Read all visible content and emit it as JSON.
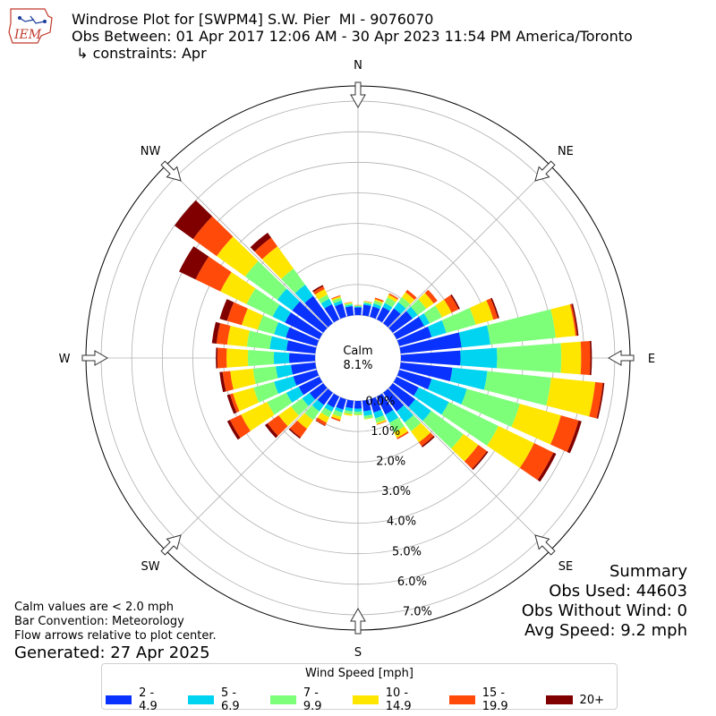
{
  "header": {
    "title_line1": "Windrose Plot for [SWPM4] S.W. Pier  MI - 9076070",
    "title_line2": "Obs Between: 01 Apr 2017 12:06 AM - 30 Apr 2023 11:54 PM America/Toronto",
    "title_line3": " ↳ constraints: Apr",
    "logo_text": "IEM"
  },
  "summary": {
    "heading": "Summary",
    "obs_used": "Obs Used: 44603",
    "obs_without_wind": "Obs Without Wind: 0",
    "avg_speed": "Avg Speed: 9.2 mph"
  },
  "notes": {
    "calm_note": "Calm values are < 2.0 mph",
    "bar_convention": "Bar Convention: Meteorology",
    "flow_arrows": "Flow arrows relative to plot center.",
    "generated": "Generated: 27 Apr 2025"
  },
  "legend": {
    "title": "Wind Speed [mph]",
    "items": [
      {
        "label": "2 - 4.9",
        "color": "#0a32ff"
      },
      {
        "label": "5 - 6.9",
        "color": "#00d4f0"
      },
      {
        "label": "7 - 9.9",
        "color": "#7dff7a"
      },
      {
        "label": "10 - 14.9",
        "color": "#ffe600"
      },
      {
        "label": "15 - 19.9",
        "color": "#ff4a0a"
      },
      {
        "label": "20+",
        "color": "#800000"
      }
    ]
  },
  "chart_data": {
    "type": "windrose",
    "calm_label": "Calm",
    "calm_value": "8.1%",
    "radial_labels": [
      "0.0%",
      "1.0%",
      "2.0%",
      "3.0%",
      "4.0%",
      "5.0%",
      "6.0%",
      "7.0%"
    ],
    "radial_max": 7.5,
    "compass_labels": [
      {
        "label": "N",
        "dir": 0
      },
      {
        "label": "NE",
        "dir": 45
      },
      {
        "label": "E",
        "dir": 90
      },
      {
        "label": "SE",
        "dir": 135
      },
      {
        "label": "S",
        "dir": 180
      },
      {
        "label": "SW",
        "dir": 225
      },
      {
        "label": "W",
        "dir": 270
      },
      {
        "label": "NW",
        "dir": 315
      }
    ],
    "bins": [
      "2 - 4.9",
      "5 - 6.9",
      "7 - 9.9",
      "10 - 14.9",
      "15 - 19.9",
      "20+"
    ],
    "sectors": [
      {
        "dir": 0,
        "values": [
          0.25,
          0.03,
          0.03,
          0.01,
          0.01,
          0.0
        ]
      },
      {
        "dir": 10,
        "values": [
          0.35,
          0.05,
          0.04,
          0.02,
          0.01,
          0.0
        ]
      },
      {
        "dir": 20,
        "values": [
          0.35,
          0.1,
          0.1,
          0.05,
          0.05,
          0.0
        ]
      },
      {
        "dir": 30,
        "values": [
          0.45,
          0.15,
          0.2,
          0.1,
          0.05,
          0.0
        ]
      },
      {
        "dir": 40,
        "values": [
          0.6,
          0.25,
          0.2,
          0.2,
          0.1,
          0.0
        ]
      },
      {
        "dir": 50,
        "values": [
          0.8,
          0.2,
          0.35,
          0.3,
          0.15,
          0.0
        ]
      },
      {
        "dir": 60,
        "values": [
          1.0,
          0.2,
          0.45,
          0.35,
          0.25,
          0.05
        ]
      },
      {
        "dir": 70,
        "values": [
          1.1,
          0.5,
          1.0,
          0.6,
          0.15,
          0.05
        ]
      },
      {
        "dir": 80,
        "values": [
          2.0,
          0.95,
          2.15,
          0.65,
          0.05,
          0.05
        ]
      },
      {
        "dir": 90,
        "values": [
          1.95,
          1.2,
          2.1,
          0.65,
          0.3,
          0.05
        ]
      },
      {
        "dir": 100,
        "values": [
          1.7,
          1.15,
          2.1,
          1.45,
          0.25,
          0.05
        ]
      },
      {
        "dir": 110,
        "values": [
          1.1,
          1.2,
          1.8,
          1.4,
          0.6,
          0.1
        ]
      },
      {
        "dir": 120,
        "values": [
          0.8,
          1.1,
          1.8,
          1.3,
          0.7,
          0.1
        ]
      },
      {
        "dir": 130,
        "values": [
          0.9,
          0.65,
          1.3,
          0.6,
          0.35,
          0.05
        ]
      },
      {
        "dir": 140,
        "values": [
          0.75,
          0.45,
          0.35,
          0.45,
          0.15,
          0.05
        ]
      },
      {
        "dir": 150,
        "values": [
          0.65,
          0.3,
          0.35,
          0.2,
          0.05,
          0.0
        ]
      },
      {
        "dir": 160,
        "values": [
          0.45,
          0.2,
          0.15,
          0.05,
          0.02,
          0.0
        ]
      },
      {
        "dir": 170,
        "values": [
          0.35,
          0.15,
          0.1,
          0.02,
          0.0,
          0.0
        ]
      },
      {
        "dir": 180,
        "values": [
          0.25,
          0.1,
          0.1,
          0.02,
          0.0,
          0.0
        ]
      },
      {
        "dir": 190,
        "values": [
          0.25,
          0.1,
          0.1,
          0.05,
          0.0,
          0.0
        ]
      },
      {
        "dir": 200,
        "values": [
          0.35,
          0.1,
          0.15,
          0.1,
          0.05,
          0.0
        ]
      },
      {
        "dir": 210,
        "values": [
          0.4,
          0.15,
          0.2,
          0.2,
          0.1,
          0.02
        ]
      },
      {
        "dir": 220,
        "values": [
          0.5,
          0.25,
          0.35,
          0.35,
          0.35,
          0.05
        ]
      },
      {
        "dir": 230,
        "values": [
          0.55,
          0.3,
          0.45,
          0.5,
          0.45,
          0.1
        ]
      },
      {
        "dir": 240,
        "values": [
          0.75,
          0.45,
          0.7,
          0.95,
          0.4,
          0.1
        ]
      },
      {
        "dir": 250,
        "values": [
          0.8,
          0.65,
          0.7,
          0.7,
          0.1,
          0.1
        ]
      },
      {
        "dir": 260,
        "values": [
          0.8,
          0.5,
          0.75,
          0.75,
          0.25,
          0.1
        ]
      },
      {
        "dir": 270,
        "values": [
          0.85,
          0.5,
          0.85,
          0.7,
          0.3,
          0.05
        ]
      },
      {
        "dir": 280,
        "values": [
          0.95,
          0.55,
          0.75,
          0.65,
          0.35,
          0.15
        ]
      },
      {
        "dir": 290,
        "values": [
          1.05,
          0.4,
          0.55,
          0.55,
          0.5,
          0.25
        ]
      },
      {
        "dir": 300,
        "values": [
          1.25,
          0.45,
          0.95,
          0.95,
          0.9,
          0.6
        ]
      },
      {
        "dir": 310,
        "values": [
          1.25,
          0.6,
          1.3,
          1.15,
          0.95,
          0.75
        ]
      },
      {
        "dir": 320,
        "values": [
          1.1,
          0.45,
          0.65,
          0.9,
          0.35,
          0.2
        ]
      },
      {
        "dir": 330,
        "values": [
          0.55,
          0.2,
          0.15,
          0.2,
          0.1,
          0.05
        ]
      },
      {
        "dir": 340,
        "values": [
          0.45,
          0.1,
          0.1,
          0.05,
          0.03,
          0.0
        ]
      },
      {
        "dir": 350,
        "values": [
          0.3,
          0.05,
          0.05,
          0.03,
          0.01,
          0.0
        ]
      }
    ]
  }
}
